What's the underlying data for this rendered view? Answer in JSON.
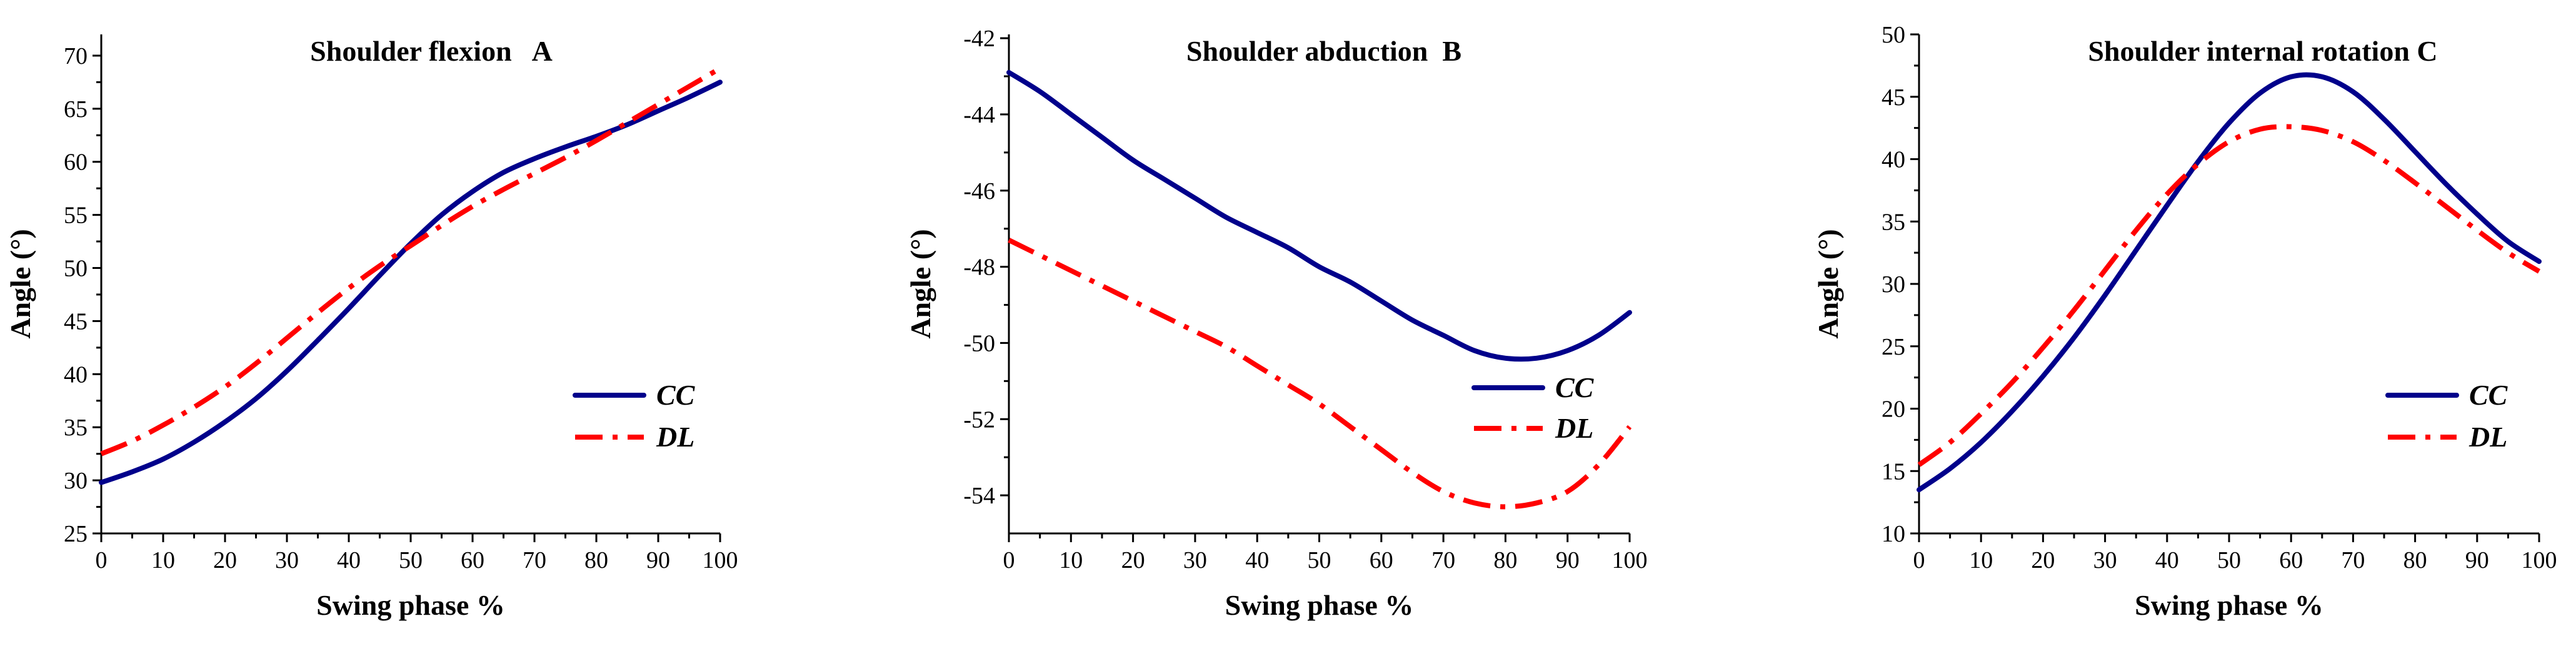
{
  "colors": {
    "cc": "#00008B",
    "dl": "#FF0000",
    "axis": "#000000"
  },
  "chart_data": [
    {
      "type": "line",
      "title": "Shoulder flexion   A",
      "xlabel": "Swing phase %",
      "ylabel": "Angle (°)",
      "xlim": [
        0,
        100
      ],
      "ylim": [
        25,
        72
      ],
      "xticks": [
        "0",
        "10",
        "20",
        "30",
        "40",
        "50",
        "60",
        "70",
        "80",
        "90",
        "100"
      ],
      "yticks": [
        "25",
        "30",
        "35",
        "40",
        "45",
        "50",
        "55",
        "60",
        "65",
        "70"
      ],
      "legend_position": "bottom-right",
      "x": [
        0,
        5,
        10,
        15,
        20,
        25,
        30,
        35,
        40,
        45,
        50,
        55,
        60,
        65,
        70,
        75,
        80,
        85,
        90,
        95,
        100
      ],
      "series": [
        {
          "name": "CC",
          "values": [
            29.8,
            30.8,
            32.0,
            33.6,
            35.5,
            37.7,
            40.3,
            43.2,
            46.2,
            49.3,
            52.3,
            55.0,
            57.2,
            59.0,
            60.3,
            61.4,
            62.4,
            63.5,
            64.8,
            66.1,
            67.5
          ]
        },
        {
          "name": "DL",
          "values": [
            32.5,
            33.7,
            35.2,
            36.9,
            38.8,
            41.0,
            43.4,
            45.8,
            48.1,
            50.2,
            52.1,
            54.0,
            55.8,
            57.4,
            58.9,
            60.4,
            62.0,
            63.7,
            65.4,
            67.1,
            68.8
          ]
        }
      ]
    },
    {
      "type": "line",
      "title": "Shoulder abduction  B",
      "xlabel": "Swing phase %",
      "ylabel": "Angle (°)",
      "xlim": [
        0,
        100
      ],
      "ylim": [
        -55.0,
        -41.9
      ],
      "xticks": [
        "0",
        "10",
        "20",
        "30",
        "40",
        "50",
        "60",
        "70",
        "80",
        "90",
        "100"
      ],
      "yticks": [
        "-54",
        "-52",
        "-50",
        "-48",
        "-46",
        "-44",
        "-42"
      ],
      "legend_position": "right",
      "x": [
        0,
        5,
        10,
        15,
        20,
        25,
        30,
        35,
        40,
        45,
        50,
        55,
        60,
        65,
        70,
        75,
        80,
        85,
        90,
        95,
        100
      ],
      "series": [
        {
          "name": "CC",
          "values": [
            -42.9,
            -43.4,
            -44.0,
            -44.6,
            -45.2,
            -45.7,
            -46.2,
            -46.7,
            -47.1,
            -47.5,
            -48.0,
            -48.4,
            -48.9,
            -49.4,
            -49.8,
            -50.2,
            -50.4,
            -50.4,
            -50.2,
            -49.8,
            -49.2
          ]
        },
        {
          "name": "DL",
          "values": [
            -47.3,
            -47.7,
            -48.1,
            -48.5,
            -48.9,
            -49.3,
            -49.7,
            -50.1,
            -50.6,
            -51.1,
            -51.6,
            -52.2,
            -52.8,
            -53.4,
            -53.9,
            -54.2,
            -54.3,
            -54.2,
            -53.9,
            -53.2,
            -52.2
          ]
        }
      ]
    },
    {
      "type": "line",
      "title": "Shoulder internal rotation C",
      "xlabel": "Swing phase %",
      "ylabel": "Angle (°)",
      "xlim": [
        0,
        100
      ],
      "ylim": [
        10,
        50
      ],
      "xticks": [
        "0",
        "10",
        "20",
        "30",
        "40",
        "50",
        "60",
        "70",
        "80",
        "90",
        "100"
      ],
      "yticks": [
        "10",
        "15",
        "20",
        "25",
        "30",
        "35",
        "40",
        "45",
        "50"
      ],
      "legend_position": "bottom-right",
      "x": [
        0,
        5,
        10,
        15,
        20,
        25,
        30,
        35,
        40,
        45,
        50,
        55,
        60,
        65,
        70,
        75,
        80,
        85,
        90,
        95,
        100
      ],
      "series": [
        {
          "name": "CC",
          "values": [
            13.5,
            15.2,
            17.3,
            19.8,
            22.6,
            25.7,
            29.1,
            32.7,
            36.3,
            39.8,
            42.9,
            45.3,
            46.6,
            46.6,
            45.4,
            43.2,
            40.6,
            38.0,
            35.6,
            33.4,
            31.8
          ]
        },
        {
          "name": "DL",
          "values": [
            15.5,
            17.3,
            19.6,
            22.1,
            24.9,
            27.9,
            31.1,
            34.3,
            37.2,
            39.6,
            41.4,
            42.4,
            42.6,
            42.3,
            41.4,
            39.9,
            38.1,
            36.2,
            34.3,
            32.5,
            31.0
          ]
        }
      ]
    }
  ]
}
